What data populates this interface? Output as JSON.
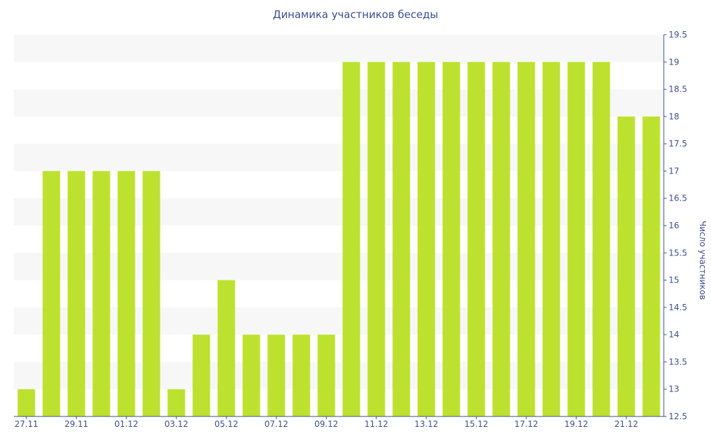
{
  "chart_data": {
    "type": "bar",
    "title": "Динамика участников беседы",
    "ylabel": "Число участников",
    "xlabel": "",
    "ylim": [
      12.5,
      19.5
    ],
    "y_ticks": [
      "12.5",
      "13",
      "13.5",
      "14",
      "14.5",
      "15",
      "15.5",
      "16",
      "16.5",
      "17",
      "17.5",
      "18",
      "18.5",
      "19",
      "19.5"
    ],
    "x_tick_labels": [
      "27.11",
      "29.11",
      "01.12",
      "03.12",
      "05.12",
      "07.12",
      "09.12",
      "11.12",
      "13.12",
      "15.12",
      "17.12",
      "19.12",
      "21.12"
    ],
    "categories": [
      "27.11",
      "28.11",
      "29.11",
      "30.11",
      "01.12",
      "02.12",
      "03.12",
      "04.12",
      "05.12",
      "06.12",
      "07.12",
      "08.12",
      "09.12",
      "10.12",
      "11.12",
      "12.12",
      "13.12",
      "14.12",
      "15.12",
      "16.12",
      "17.12",
      "18.12",
      "19.12",
      "20.12",
      "21.12",
      "22.12"
    ],
    "values": [
      13,
      17,
      17,
      17,
      17,
      17,
      13,
      14,
      15,
      14,
      14,
      14,
      14,
      19,
      19,
      19,
      19,
      19,
      19,
      19,
      19,
      19,
      19,
      19,
      18,
      18
    ],
    "bar_color": "#bde12f",
    "band_color": "#f7f7f7",
    "axis_color": "#3d4e8f",
    "grid": "horizontal bands",
    "y_axis_position": "right"
  }
}
